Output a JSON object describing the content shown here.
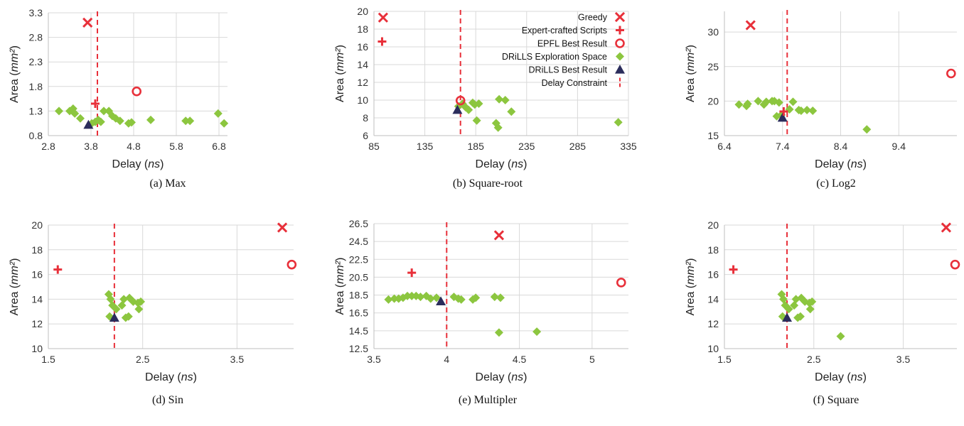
{
  "legend": [
    {
      "key": "greedy",
      "label": "Greedy",
      "marker": "cross-x",
      "color": "#e8303a"
    },
    {
      "key": "expert",
      "label": "Expert-crafted Scripts",
      "marker": "plus",
      "color": "#e8303a"
    },
    {
      "key": "epfl",
      "label": "EPFL Best Result",
      "marker": "circle",
      "color": "#e8303a"
    },
    {
      "key": "explore",
      "label": "DRiLLS Exploration Space",
      "marker": "diamond",
      "color": "#8cc63f"
    },
    {
      "key": "drills",
      "label": "DRiLLS Best Result",
      "marker": "triangle",
      "color": "#2b2d5c"
    },
    {
      "key": "constraint",
      "label": "Delay Constraint",
      "marker": "dashed-line",
      "color": "#e8303a"
    }
  ],
  "chart_data": [
    {
      "type": "scatter",
      "caption": "(a) Max",
      "xlabel": "Delay (ns)",
      "ylabel": "Area (mm²)",
      "xlim": [
        2.8,
        7.0
      ],
      "ylim": [
        0.8,
        3.3
      ],
      "xticks": [
        "2.8",
        "3.8",
        "4.8",
        "5.8",
        "6.8"
      ],
      "yticks": [
        "0.8",
        "1.3",
        "1.8",
        "2.3",
        "2.8",
        "3.3"
      ],
      "delay_constraint": 3.95,
      "greedy": [
        [
          3.72,
          3.1
        ]
      ],
      "expert": [
        [
          3.9,
          1.45
        ]
      ],
      "epfl": [
        [
          4.87,
          1.7
        ]
      ],
      "drills": [
        [
          3.74,
          1.02
        ]
      ],
      "explore": [
        [
          3.05,
          1.3
        ],
        [
          3.3,
          1.3
        ],
        [
          3.38,
          1.35
        ],
        [
          3.42,
          1.25
        ],
        [
          3.55,
          1.15
        ],
        [
          3.82,
          1.05
        ],
        [
          3.9,
          1.08
        ],
        [
          3.97,
          1.12
        ],
        [
          4.03,
          1.08
        ],
        [
          4.1,
          1.3
        ],
        [
          4.22,
          1.3
        ],
        [
          4.3,
          1.2
        ],
        [
          4.38,
          1.15
        ],
        [
          4.48,
          1.1
        ],
        [
          4.68,
          1.05
        ],
        [
          4.75,
          1.07
        ],
        [
          5.2,
          1.12
        ],
        [
          6.02,
          1.1
        ],
        [
          6.12,
          1.1
        ],
        [
          6.78,
          1.25
        ],
        [
          6.92,
          1.05
        ]
      ]
    },
    {
      "type": "scatter",
      "caption": "(b) Square-root",
      "xlabel": "Delay (ns)",
      "ylabel": "Area (mm²)",
      "xlim": [
        85,
        335
      ],
      "ylim": [
        6,
        20
      ],
      "xticks": [
        "85",
        "135",
        "185",
        "235",
        "285",
        "335"
      ],
      "yticks": [
        "6",
        "8",
        "10",
        "12",
        "14",
        "16",
        "18",
        "20"
      ],
      "delay_constraint": 170,
      "greedy": [
        [
          94,
          19.3
        ]
      ],
      "expert": [
        [
          93,
          16.6
        ]
      ],
      "epfl": [
        [
          170,
          9.95
        ]
      ],
      "drills": [
        [
          167,
          8.9
        ]
      ],
      "explore": [
        [
          168,
          9.3
        ],
        [
          172,
          9.6
        ],
        [
          175,
          9.2
        ],
        [
          178,
          8.9
        ],
        [
          182,
          9.7
        ],
        [
          184,
          9.5
        ],
        [
          186,
          7.7
        ],
        [
          188,
          9.6
        ],
        [
          205,
          7.4
        ],
        [
          207,
          6.9
        ],
        [
          208,
          10.1
        ],
        [
          214,
          10.0
        ],
        [
          220,
          8.7
        ],
        [
          325,
          7.5
        ]
      ]
    },
    {
      "type": "scatter",
      "caption": "(c) Log2",
      "xlabel": "Delay (ns)",
      "ylabel": "Area (mm²)",
      "xlim": [
        6.4,
        10.4
      ],
      "ylim": [
        15,
        33
      ],
      "xticks": [
        "6.4",
        "7.4",
        "8.4",
        "9.4"
      ],
      "yticks": [
        "15",
        "20",
        "25",
        "30"
      ],
      "delay_constraint": 7.48,
      "greedy": [
        [
          6.85,
          31.0
        ]
      ],
      "expert": [
        [
          7.42,
          18.5
        ]
      ],
      "epfl": [
        [
          10.3,
          24.0
        ]
      ],
      "drills": [
        [
          7.4,
          17.6
        ]
      ],
      "explore": [
        [
          6.65,
          19.5
        ],
        [
          6.78,
          19.3
        ],
        [
          6.8,
          19.6
        ],
        [
          6.98,
          20.0
        ],
        [
          7.08,
          19.5
        ],
        [
          7.12,
          19.9
        ],
        [
          7.22,
          20.0
        ],
        [
          7.26,
          20.0
        ],
        [
          7.3,
          17.8
        ],
        [
          7.34,
          19.8
        ],
        [
          7.38,
          18.0
        ],
        [
          7.52,
          18.8
        ],
        [
          7.58,
          19.9
        ],
        [
          7.68,
          18.7
        ],
        [
          7.72,
          18.6
        ],
        [
          7.82,
          18.7
        ],
        [
          7.92,
          18.6
        ],
        [
          8.85,
          15.9
        ]
      ]
    },
    {
      "type": "scatter",
      "caption": "(d) Sin",
      "xlabel": "Delay (ns)",
      "ylabel": "Area (mm²)",
      "xlim": [
        1.5,
        4.1
      ],
      "ylim": [
        10,
        20
      ],
      "xticks": [
        "1.5",
        "2.5",
        "3.5"
      ],
      "yticks": [
        "10",
        "12",
        "14",
        "16",
        "18",
        "20"
      ],
      "delay_constraint": 2.2,
      "greedy": [
        [
          3.98,
          19.8
        ]
      ],
      "expert": [
        [
          1.6,
          16.4
        ]
      ],
      "epfl": [
        [
          4.08,
          16.8
        ]
      ],
      "drills": [
        [
          2.2,
          12.5
        ]
      ],
      "explore": [
        [
          2.14,
          14.4
        ],
        [
          2.16,
          14.0
        ],
        [
          2.18,
          13.5
        ],
        [
          2.15,
          12.6
        ],
        [
          2.22,
          13.2
        ],
        [
          2.28,
          13.5
        ],
        [
          2.3,
          14.0
        ],
        [
          2.32,
          12.5
        ],
        [
          2.35,
          12.6
        ],
        [
          2.36,
          14.1
        ],
        [
          2.4,
          13.8
        ],
        [
          2.45,
          13.7
        ],
        [
          2.46,
          13.2
        ],
        [
          2.48,
          13.8
        ]
      ]
    },
    {
      "type": "scatter",
      "caption": "(e) Multipler",
      "xlabel": "Delay (ns)",
      "ylabel": "Area (mm²)",
      "xlim": [
        3.5,
        5.25
      ],
      "ylim": [
        12.5,
        26.5
      ],
      "xticks": [
        "3.5",
        "4",
        "4.5",
        "5"
      ],
      "yticks": [
        "12.5",
        "14.5",
        "16.5",
        "18.5",
        "20.5",
        "22.5",
        "24.5",
        "26.5"
      ],
      "delay_constraint": 4.0,
      "greedy": [
        [
          4.36,
          25.2
        ]
      ],
      "expert": [
        [
          3.76,
          21.0
        ]
      ],
      "epfl": [
        [
          5.2,
          19.9
        ]
      ],
      "drills": [
        [
          3.96,
          17.8
        ]
      ],
      "explore": [
        [
          3.6,
          18.0
        ],
        [
          3.64,
          18.1
        ],
        [
          3.67,
          18.1
        ],
        [
          3.7,
          18.2
        ],
        [
          3.73,
          18.4
        ],
        [
          3.76,
          18.4
        ],
        [
          3.79,
          18.4
        ],
        [
          3.82,
          18.3
        ],
        [
          3.86,
          18.4
        ],
        [
          3.89,
          18.1
        ],
        [
          3.93,
          18.2
        ],
        [
          4.05,
          18.3
        ],
        [
          4.08,
          18.1
        ],
        [
          4.1,
          18.0
        ],
        [
          4.18,
          18.0
        ],
        [
          4.2,
          18.2
        ],
        [
          4.33,
          18.3
        ],
        [
          4.37,
          18.2
        ],
        [
          4.36,
          14.3
        ],
        [
          4.62,
          14.4
        ]
      ]
    },
    {
      "type": "scatter",
      "caption": "(f) Square",
      "xlabel": "Delay (ns)",
      "ylabel": "Area (mm²)",
      "xlim": [
        1.5,
        4.1
      ],
      "ylim": [
        10,
        20
      ],
      "xticks": [
        "1.5",
        "2.5",
        "3.5"
      ],
      "yticks": [
        "10",
        "12",
        "14",
        "16",
        "18",
        "20"
      ],
      "delay_constraint": 2.2,
      "greedy": [
        [
          3.98,
          19.8
        ]
      ],
      "expert": [
        [
          1.6,
          16.4
        ]
      ],
      "epfl": [
        [
          4.08,
          16.8
        ]
      ],
      "drills": [
        [
          2.2,
          12.5
        ]
      ],
      "explore": [
        [
          2.14,
          14.4
        ],
        [
          2.16,
          14.0
        ],
        [
          2.18,
          13.5
        ],
        [
          2.15,
          12.6
        ],
        [
          2.22,
          13.2
        ],
        [
          2.28,
          13.5
        ],
        [
          2.3,
          14.0
        ],
        [
          2.32,
          12.5
        ],
        [
          2.35,
          12.6
        ],
        [
          2.36,
          14.1
        ],
        [
          2.4,
          13.8
        ],
        [
          2.45,
          13.7
        ],
        [
          2.46,
          13.2
        ],
        [
          2.48,
          13.8
        ],
        [
          2.8,
          11.0
        ]
      ]
    }
  ]
}
